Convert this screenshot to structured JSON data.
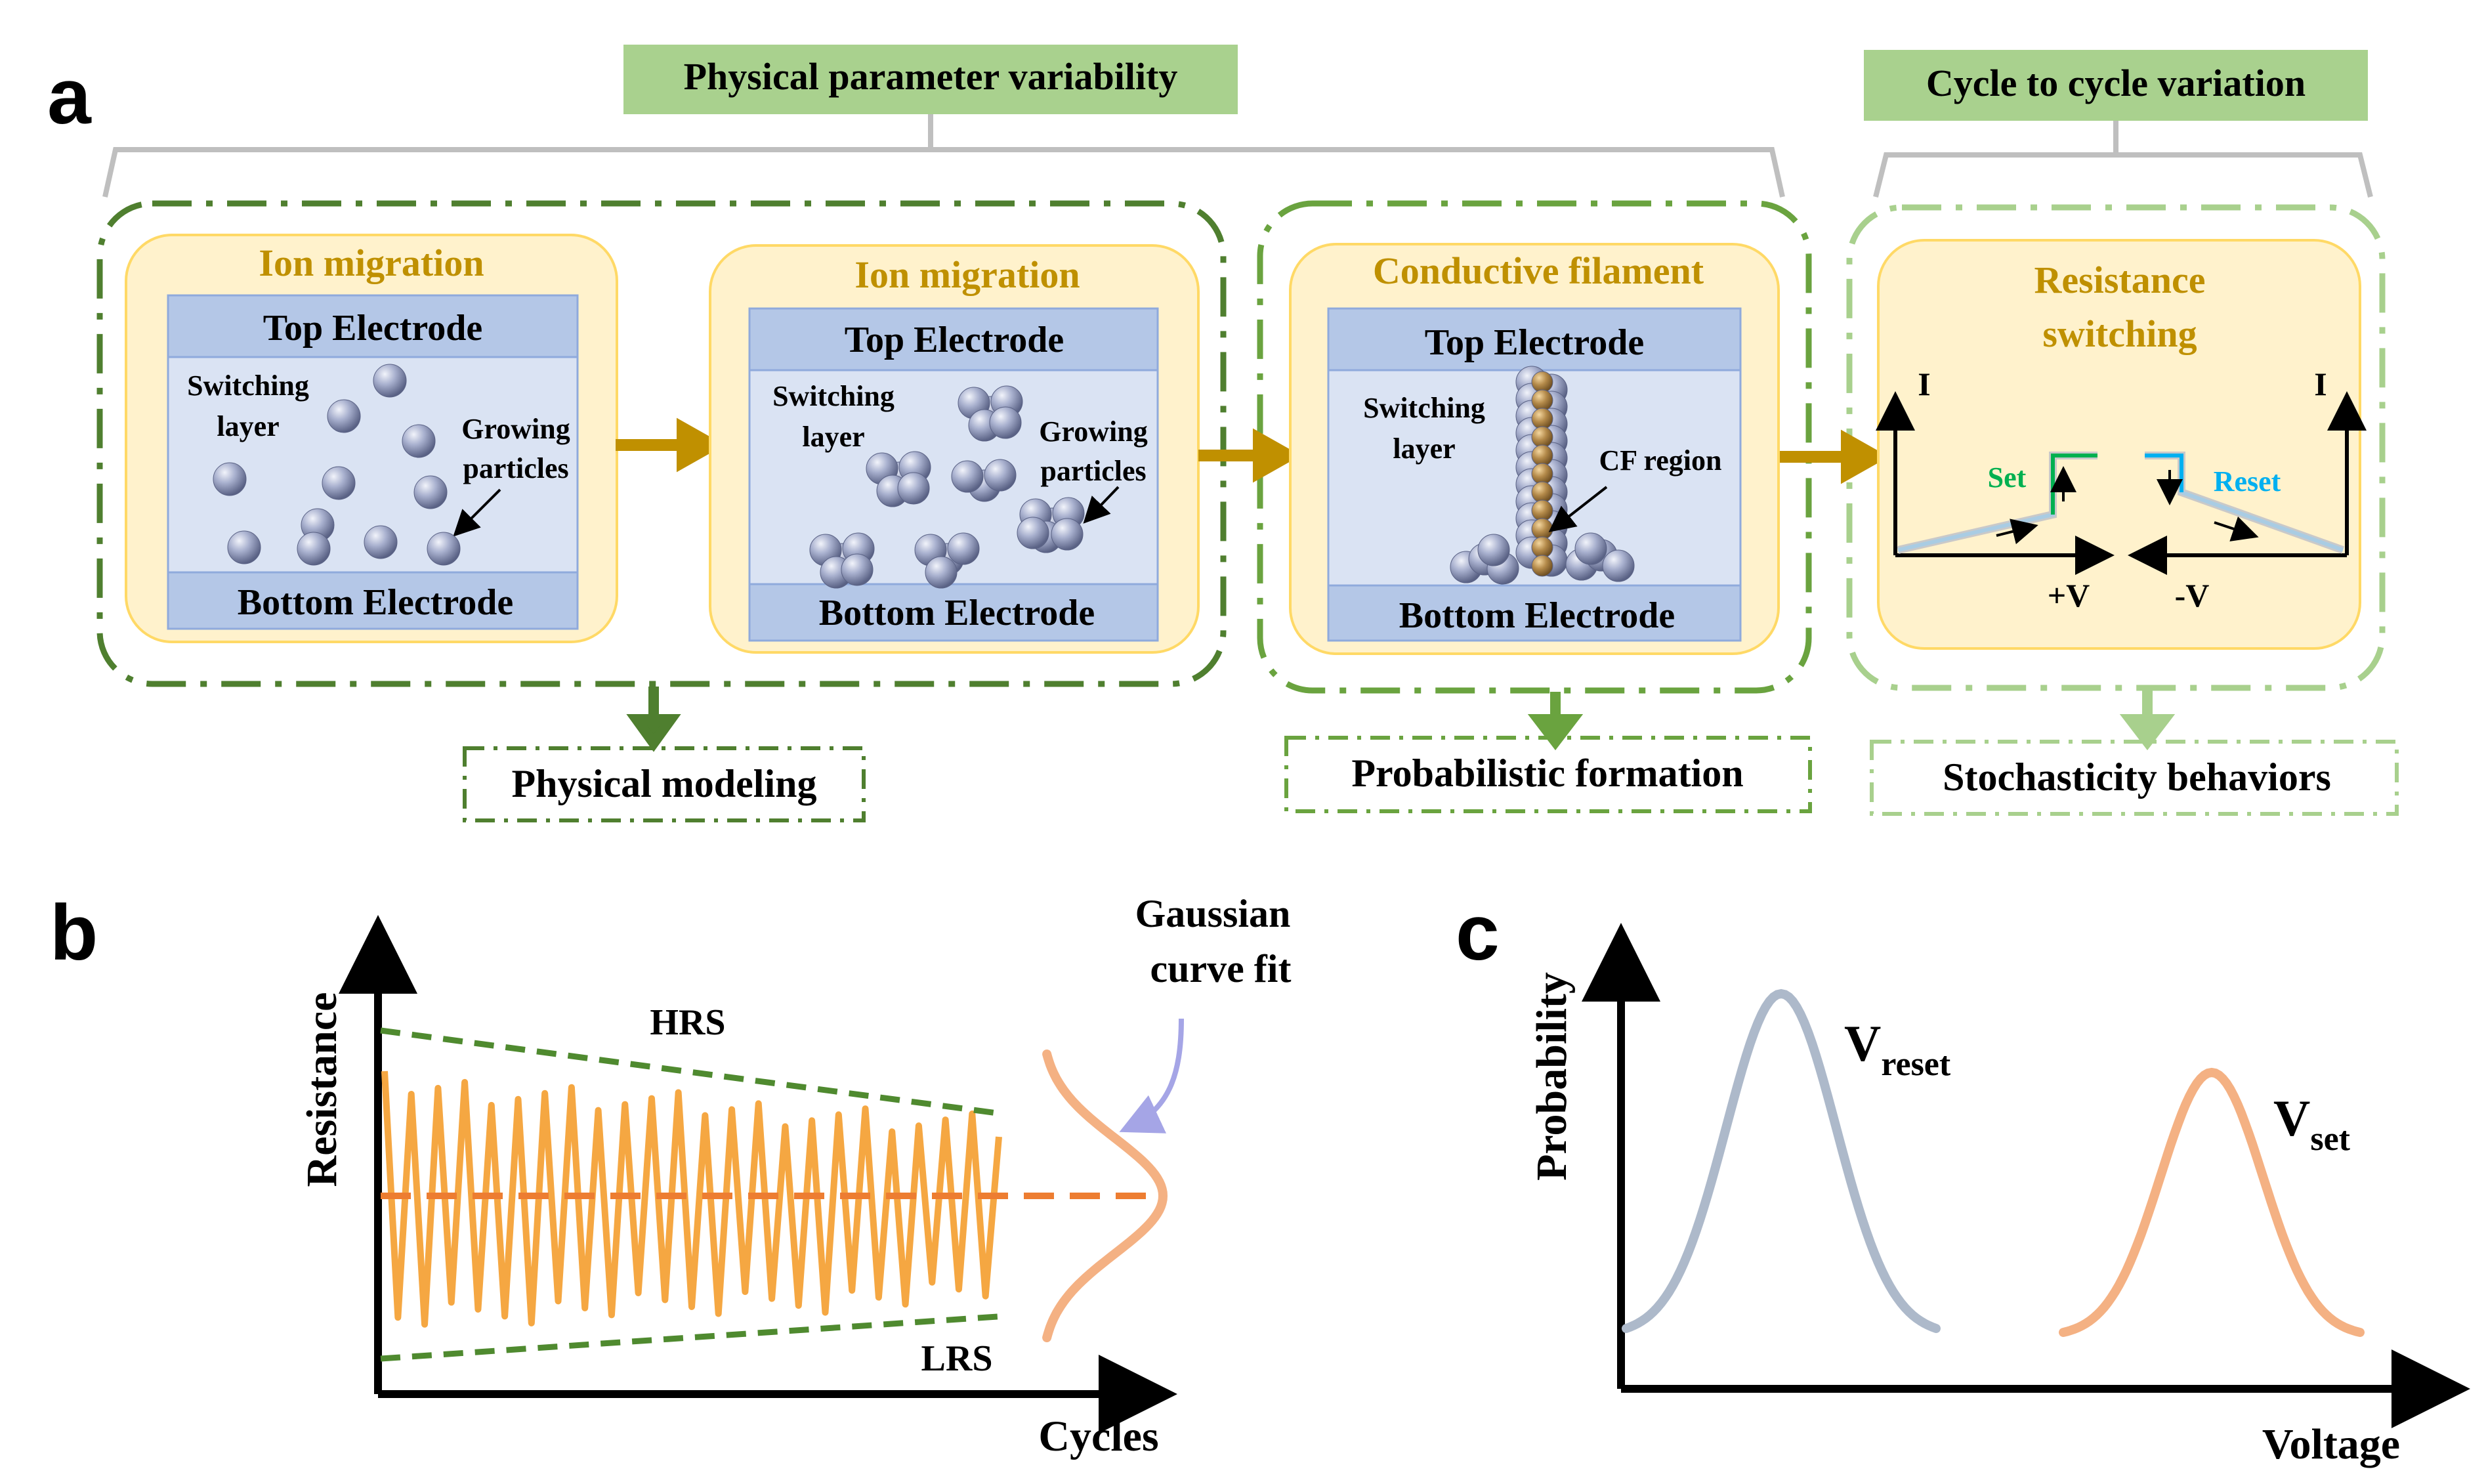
{
  "panel_a": {
    "letter": "a",
    "group_labels": {
      "physical": "Physical parameter variability",
      "cycle": "Cycle to cycle variation"
    },
    "box1": {
      "title": "Ion migration",
      "top_electrode": "Top Electrode",
      "bottom_electrode": "Bottom Electrode",
      "switching_line1": "Switching",
      "switching_line2": "layer",
      "growing_line1": "Growing",
      "growing_line2": "particles"
    },
    "box2": {
      "title": "Ion migration",
      "top_electrode": "Top Electrode",
      "bottom_electrode": "Bottom Electrode",
      "switching_line1": "Switching",
      "switching_line2": "layer",
      "growing_line1": "Growing",
      "growing_line2": "particles"
    },
    "box3": {
      "title": "Conductive filament",
      "top_electrode": "Top Electrode",
      "bottom_electrode": "Bottom Electrode",
      "switching_line1": "Switching",
      "switching_line2": "layer",
      "cf_label": "CF region"
    },
    "box4": {
      "title_line1": "Resistance",
      "title_line2": "switching",
      "axis_i": "I",
      "set_label": "Set",
      "reset_label": "Reset",
      "plus_v": "+V",
      "minus_v": "-V"
    },
    "outputs": {
      "physical_modeling": "Physical modeling",
      "probabilistic_formation": "Probabilistic formation",
      "stochasticity_behaviors": "Stochasticity behaviors"
    },
    "colors": {
      "dark_green": "#4f7f2f",
      "mid_green": "#6aa33f",
      "light_green": "#a8d08d",
      "label_green_fill": "#a9d18e",
      "box_fill": "#fff2cc",
      "box_stroke": "#ffd966",
      "title_gold": "#bf9000",
      "electrode": "#b4c7e7",
      "layer": "#dae3f3",
      "arrow_gold": "#c09000",
      "set_green": "#00b050",
      "reset_blue": "#00b0f0"
    }
  },
  "panel_b": {
    "letter": "b",
    "ylabel": "Resistance",
    "xlabel": "Cycles",
    "hrs_label": "HRS",
    "lrs_label": "LRS",
    "gaussian_line1": "Gaussian",
    "gaussian_line2": "curve fit",
    "colors": {
      "trace": "#f5a742",
      "envelope": "#4f8a2f",
      "mean": "#ed7d31",
      "gauss": "#f4b183",
      "pointer": "#a5a5e6"
    }
  },
  "panel_c": {
    "letter": "c",
    "ylabel": "Probability",
    "xlabel": "Voltage",
    "vreset_main": "V",
    "vreset_sub": "reset",
    "vset_main": "V",
    "vset_sub": "set",
    "colors": {
      "vreset": "#adb9ca",
      "vset": "#f4b183"
    }
  }
}
